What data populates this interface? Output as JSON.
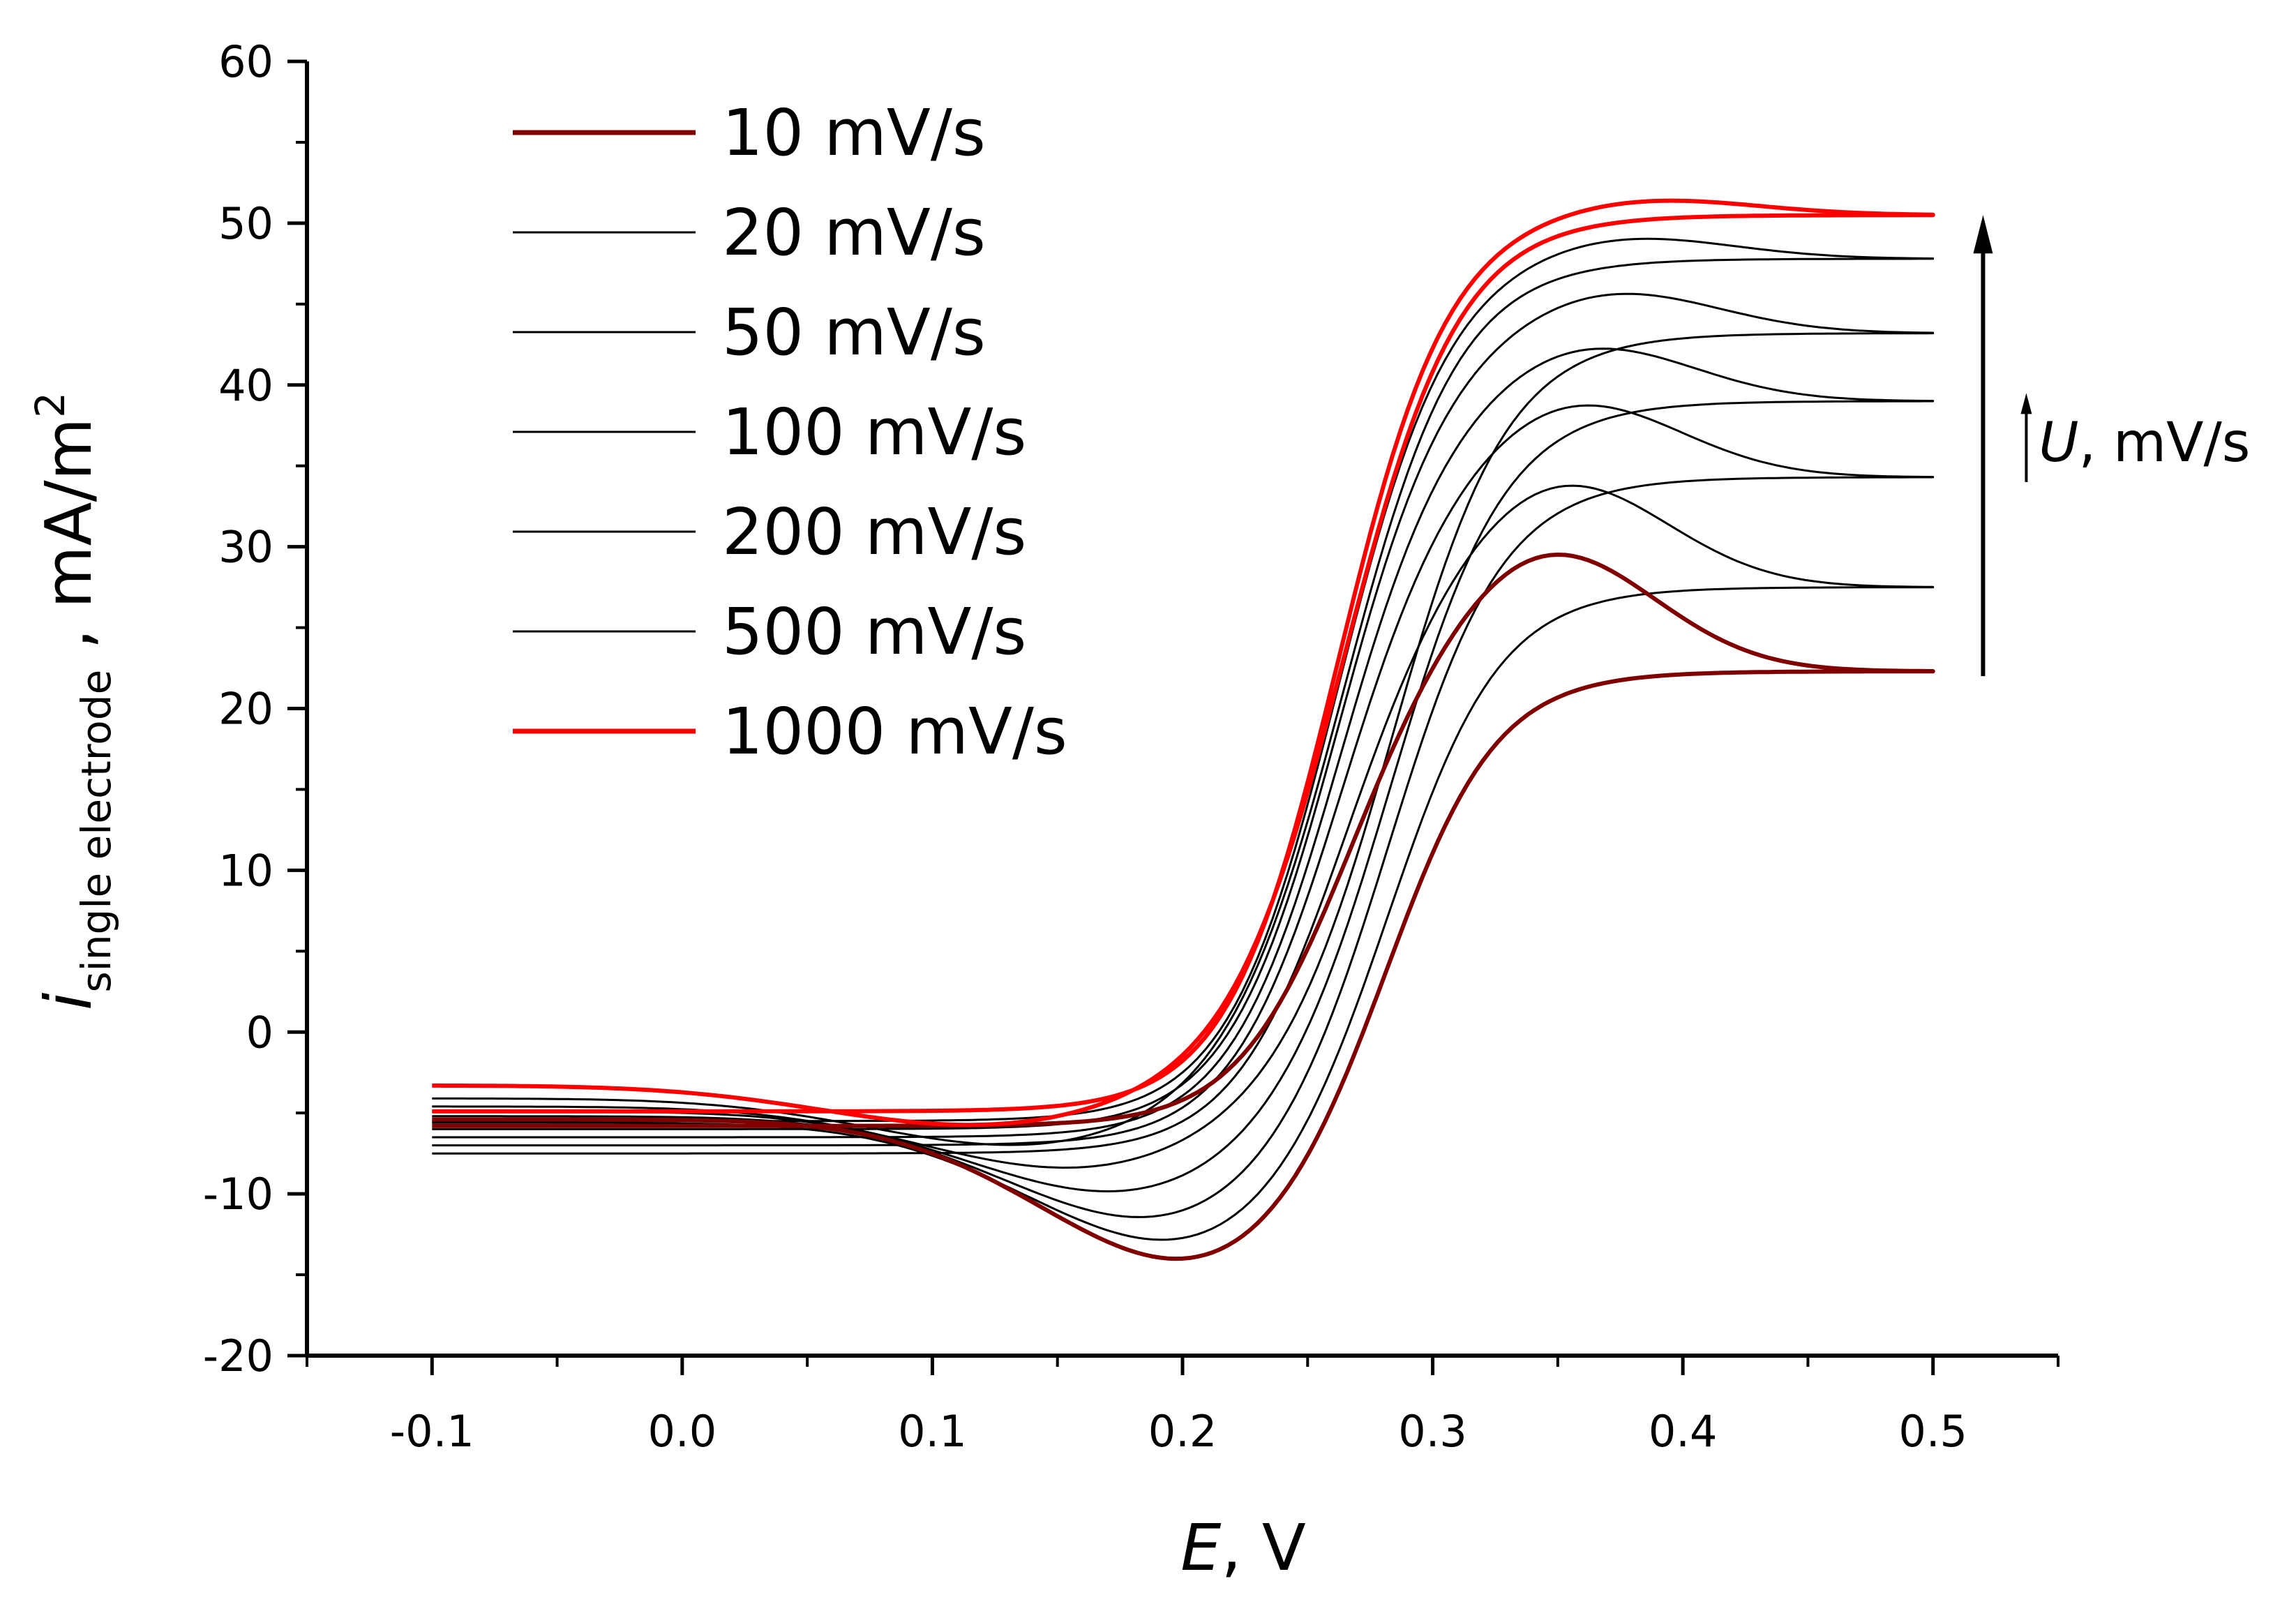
{
  "chart_data": {
    "type": "line",
    "title": "",
    "xlabel": {
      "symbol": "E",
      "unit": ", V"
    },
    "ylabel": {
      "symbol": "i",
      "subscript": "single electrode",
      "unit": " , mA/m",
      "superscript": "2"
    },
    "xlim": [
      -0.15,
      0.55
    ],
    "ylim": [
      -20,
      60
    ],
    "xticks": [
      "-0.1",
      "0.0",
      "0.1",
      "0.2",
      "0.3",
      "0.4",
      "0.5"
    ],
    "yticks": [
      "-20",
      "-10",
      "0",
      "10",
      "20",
      "30",
      "40",
      "50",
      "60"
    ],
    "legend_position": "top-left",
    "annotation": {
      "symbol": "U",
      "unit": ", mV/s",
      "from": 22,
      "to": 50.5,
      "x": 0.52
    },
    "series": [
      {
        "name": "10 mV/s",
        "color": "#800000",
        "i_lim": 22.3,
        "peak_ox": 29.7,
        "peak_ox_E": 0.345,
        "peak_red": -15.9,
        "peak_red_E": 0.21,
        "i_start_fwd": -5.8,
        "i_start_back": -5.4
      },
      {
        "name": "20 mV/s",
        "color": "#000000",
        "i_lim": 27.5,
        "peak_ox": 34.0,
        "peak_ox_E": 0.35,
        "peak_red": -14.5,
        "peak_red_E": 0.205,
        "i_start_fwd": -7.5,
        "i_start_back": -5.6
      },
      {
        "name": "50 mV/s",
        "color": "#000000",
        "i_lim": 34.3,
        "peak_ox": 39.0,
        "peak_ox_E": 0.355,
        "peak_red": -12.8,
        "peak_red_E": 0.195,
        "i_start_fwd": -7.0,
        "i_start_back": -5.2
      },
      {
        "name": "100 mV/s",
        "color": "#000000",
        "i_lim": 39.0,
        "peak_ox": 42.5,
        "peak_ox_E": 0.36,
        "peak_red": -10.8,
        "peak_red_E": 0.18,
        "i_start_fwd": -6.5,
        "i_start_back": -4.9
      },
      {
        "name": "200 mV/s",
        "color": "#000000",
        "i_lim": 43.2,
        "peak_ox": 45.8,
        "peak_ox_E": 0.37,
        "peak_red": -9.0,
        "peak_red_E": 0.16,
        "i_start_fwd": -6.0,
        "i_start_back": -4.6
      },
      {
        "name": "500 mV/s",
        "color": "#000000",
        "i_lim": 47.8,
        "peak_ox": 49.2,
        "peak_ox_E": 0.375,
        "peak_red": -7.5,
        "peak_red_E": 0.14,
        "i_start_fwd": -5.5,
        "i_start_back": -4.1
      },
      {
        "name": "1000 mV/s",
        "color": "#ff0000",
        "i_lim": 50.5,
        "peak_ox": 51.5,
        "peak_ox_E": 0.385,
        "peak_red": -6.1,
        "peak_red_E": 0.12,
        "i_start_fwd": -4.9,
        "i_start_back": -3.3
      }
    ]
  }
}
